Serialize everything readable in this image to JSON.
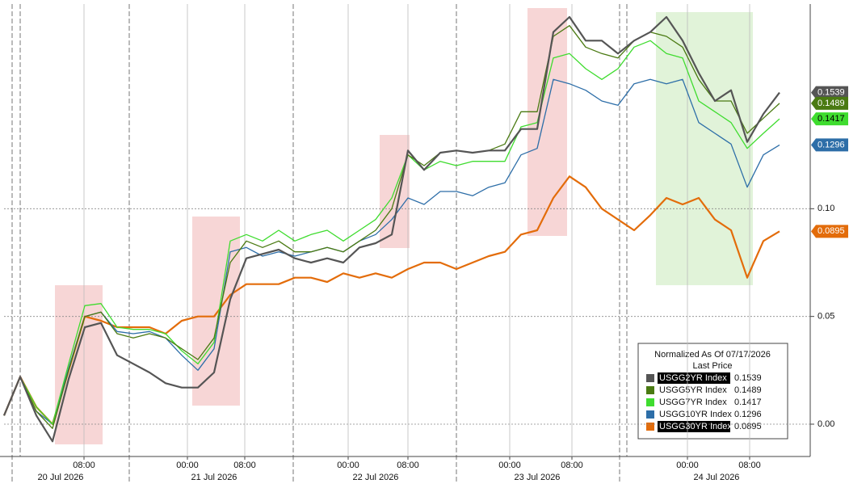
{
  "chart_data": {
    "type": "line",
    "x": [
      0,
      20,
      40,
      60,
      80,
      100,
      120,
      140,
      160,
      180,
      200,
      220,
      240,
      260,
      280,
      300,
      320,
      340,
      360,
      380,
      400,
      420,
      440,
      460,
      480,
      500,
      520,
      540,
      560,
      580,
      600,
      620,
      640,
      660,
      680,
      700,
      720,
      740,
      760,
      780,
      800,
      820,
      840,
      860,
      880,
      900,
      920,
      940,
      960
    ],
    "xlim": [
      0,
      995
    ],
    "xticks": [
      {
        "value": 99,
        "label": "08:00"
      },
      {
        "value": 227,
        "label": "00:00"
      },
      {
        "value": 298,
        "label": "08:00"
      },
      {
        "value": 426,
        "label": "00:00"
      },
      {
        "value": 500,
        "label": "08:00"
      },
      {
        "value": 626,
        "label": "00:00"
      },
      {
        "value": 703,
        "label": "08:00"
      },
      {
        "value": 846,
        "label": "00:00"
      },
      {
        "value": 923,
        "label": "08:00"
      }
    ],
    "x_group_labels": [
      {
        "value": 70,
        "label": "20 Jul 2026"
      },
      {
        "value": 260,
        "label": "21 Jul 2026"
      },
      {
        "value": 460,
        "label": "22 Jul 2026"
      },
      {
        "value": 660,
        "label": "23 Jul 2026"
      },
      {
        "value": 882,
        "label": "24 Jul 2026"
      }
    ],
    "ylim": [
      -0.015,
      0.195
    ],
    "yticks": [
      {
        "value": 0,
        "label": "0.00"
      },
      {
        "value": 0.05,
        "label": "0.05"
      },
      {
        "value": 0.1,
        "label": "0.10"
      }
    ],
    "grid": true,
    "legend": {
      "title": "Normalized As Of 07/17/2026",
      "subtitle": "Last Price"
    },
    "series": [
      {
        "name": "USGG2YR Index",
        "color": "#555555",
        "values": [
          0.004,
          0.022,
          0.004,
          -0.008,
          0.021,
          0.045,
          0.047,
          0.032,
          0.028,
          0.024,
          0.019,
          0.017,
          0.017,
          0.024,
          0.058,
          0.077,
          0.079,
          0.081,
          0.077,
          0.075,
          0.077,
          0.075,
          0.082,
          0.084,
          0.088,
          0.127,
          0.118,
          0.126,
          0.127,
          0.126,
          0.127,
          0.127,
          0.137,
          0.137,
          0.182,
          0.189,
          0.178,
          0.178,
          0.172,
          0.178,
          0.182,
          0.189,
          0.178,
          0.163,
          0.15,
          0.155,
          0.131,
          0.144,
          0.1539
        ]
      },
      {
        "name": "USGG5YR Index",
        "color": "#4a7a12",
        "values": [
          0.004,
          0.022,
          0.006,
          -0.002,
          0.025,
          0.05,
          0.052,
          0.042,
          0.04,
          0.042,
          0.04,
          0.035,
          0.03,
          0.04,
          0.075,
          0.085,
          0.082,
          0.085,
          0.08,
          0.08,
          0.082,
          0.08,
          0.085,
          0.09,
          0.1,
          0.125,
          0.12,
          0.126,
          0.127,
          0.126,
          0.127,
          0.13,
          0.145,
          0.145,
          0.18,
          0.185,
          0.175,
          0.172,
          0.17,
          0.178,
          0.182,
          0.18,
          0.175,
          0.16,
          0.15,
          0.15,
          0.135,
          0.142,
          0.1489
        ]
      },
      {
        "name": "USGG7YR Index",
        "color": "#3fdc2f",
        "values": [
          0.004,
          0.022,
          0.008,
          0.0,
          0.028,
          0.055,
          0.056,
          0.045,
          0.044,
          0.044,
          0.042,
          0.034,
          0.028,
          0.038,
          0.085,
          0.088,
          0.085,
          0.09,
          0.085,
          0.088,
          0.09,
          0.085,
          0.09,
          0.095,
          0.105,
          0.125,
          0.118,
          0.122,
          0.12,
          0.122,
          0.122,
          0.122,
          0.138,
          0.14,
          0.17,
          0.172,
          0.165,
          0.16,
          0.165,
          0.175,
          0.178,
          0.172,
          0.17,
          0.15,
          0.145,
          0.14,
          0.128,
          0.135,
          0.1417
        ]
      },
      {
        "name": "USGG10YR Index",
        "color": "#2d6ea8",
        "values": [
          0.004,
          0.022,
          0.006,
          0.0,
          0.026,
          0.05,
          0.052,
          0.043,
          0.042,
          0.043,
          0.04,
          0.032,
          0.025,
          0.035,
          0.08,
          0.082,
          0.078,
          0.08,
          0.078,
          0.08,
          0.082,
          0.08,
          0.085,
          0.088,
          0.095,
          0.105,
          0.102,
          0.108,
          0.108,
          0.106,
          0.11,
          0.112,
          0.125,
          0.128,
          0.16,
          0.158,
          0.155,
          0.15,
          0.148,
          0.158,
          0.16,
          0.158,
          0.16,
          0.14,
          0.135,
          0.13,
          0.11,
          0.125,
          0.1296
        ]
      },
      {
        "name": "USGG30YR Index",
        "color": "#e36c0a",
        "values": [
          0.004,
          0.022,
          0.008,
          0.0,
          0.025,
          0.05,
          0.048,
          0.045,
          0.045,
          0.045,
          0.042,
          0.048,
          0.05,
          0.05,
          0.06,
          0.065,
          0.065,
          0.065,
          0.068,
          0.068,
          0.066,
          0.07,
          0.068,
          0.07,
          0.068,
          0.072,
          0.075,
          0.075,
          0.072,
          0.075,
          0.078,
          0.08,
          0.088,
          0.09,
          0.105,
          0.115,
          0.11,
          0.1,
          0.095,
          0.09,
          0.097,
          0.105,
          0.102,
          0.105,
          0.095,
          0.09,
          0.068,
          0.085,
          0.0895
        ]
      }
    ]
  }
}
